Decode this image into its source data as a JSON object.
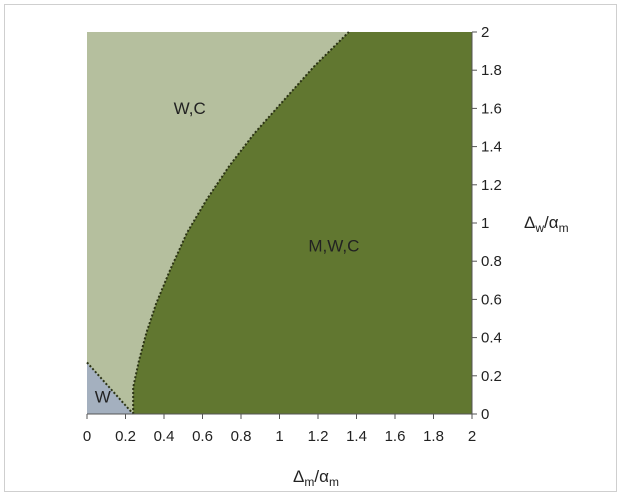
{
  "chart_data": {
    "type": "area",
    "title": "",
    "xlabel": {
      "main": "Δ",
      "sub": "m",
      "sep": "/α",
      "sub2": "m"
    },
    "ylabel": {
      "main": "Δ",
      "sub": "w",
      "sep": "/α",
      "sub2": "m"
    },
    "xlim": [
      0,
      2
    ],
    "ylim": [
      0,
      2
    ],
    "x_ticks": [
      "0",
      "0.2",
      "0.4",
      "0.6",
      "0.8",
      "1",
      "1.2",
      "1.4",
      "1.6",
      "1.8",
      "2"
    ],
    "y_ticks": [
      "0",
      "0.2",
      "0.4",
      "0.6",
      "0.8",
      "1",
      "1.2",
      "1.4",
      "1.6",
      "1.8",
      "2"
    ],
    "y_axis_side": "right",
    "grid": false,
    "regions": [
      {
        "name": "W,C",
        "label": "W,C",
        "color": "#b5bf9e",
        "label_at": [
          0.45,
          1.57
        ]
      },
      {
        "name": "M,W,C",
        "label": "M,W,C",
        "color": "#617730",
        "label_at": [
          1.15,
          0.85
        ]
      },
      {
        "name": "W",
        "label": "W",
        "color": "#a4b0bf",
        "label_at": [
          0.04,
          0.06
        ]
      }
    ],
    "boundaries": {
      "mwc_left": [
        [
          0.24,
          0.0
        ],
        [
          0.24,
          0.14
        ],
        [
          0.27,
          0.28
        ],
        [
          0.31,
          0.43
        ],
        [
          0.36,
          0.58
        ],
        [
          0.43,
          0.75
        ],
        [
          0.52,
          0.95
        ],
        [
          0.62,
          1.12
        ],
        [
          0.74,
          1.3
        ],
        [
          0.87,
          1.47
        ],
        [
          1.02,
          1.64
        ],
        [
          1.18,
          1.82
        ],
        [
          1.36,
          2.0
        ]
      ],
      "w_top": [
        [
          0.0,
          0.27
        ],
        [
          0.24,
          0.0
        ]
      ]
    }
  }
}
